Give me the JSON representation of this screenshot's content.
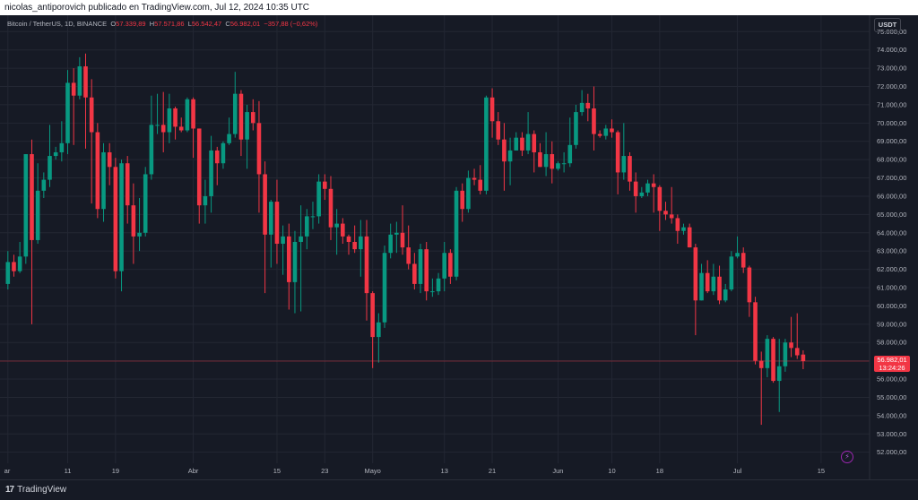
{
  "header": {
    "caption": "nicolas_antiporovich publicado en TradingView.com, Jul 12, 2024 10:35 UTC"
  },
  "legend": {
    "symbol": "Bitcoin / TetherUS, 1D, BINANCE",
    "o_label": "O",
    "o_value": "57.339,89",
    "h_label": "H",
    "h_value": "57.571,86",
    "l_label": "L",
    "l_value": "56.542,47",
    "c_label": "C",
    "c_value": "56.982,01",
    "change": "−357,88 (−0,62%)"
  },
  "currency_button": "USDT",
  "last_price": {
    "value": "56.982,01",
    "countdown": "13:24:26"
  },
  "footer": {
    "brand": "TradingView",
    "logo_text": "17"
  },
  "colors": {
    "up": "#089981",
    "down": "#f23645",
    "background": "#161a25",
    "grid": "#232733",
    "axis_text": "#b2b5be"
  },
  "chart_data": {
    "type": "candlestick",
    "title": "Bitcoin / TetherUS, 1D, BINANCE",
    "ylim": [
      51200,
      75700
    ],
    "y_ticks": [
      52000,
      53000,
      54000,
      55000,
      56000,
      57000,
      58000,
      59000,
      60000,
      61000,
      62000,
      63000,
      64000,
      65000,
      66000,
      67000,
      68000,
      69000,
      70000,
      71000,
      72000,
      73000,
      74000,
      75000
    ],
    "y_tick_labels": [
      "52.000,00",
      "53.000,00",
      "54.000,00",
      "55.000,00",
      "56.000,00",
      "57.000,00",
      "58.000,00",
      "59.000,00",
      "60.000,00",
      "61.000,00",
      "62.000,00",
      "63.000,00",
      "64.000,00",
      "65.000,00",
      "66.000,00",
      "67.000,00",
      "68.000,00",
      "69.000,00",
      "70.000,00",
      "71.000,00",
      "72.000,00",
      "73.000,00",
      "74.000,00",
      "75.000,00"
    ],
    "x_tick_labels": [
      {
        "label": "ar",
        "date": "2024-03-01"
      },
      {
        "label": "11",
        "date": "2024-03-11"
      },
      {
        "label": "19",
        "date": "2024-03-19"
      },
      {
        "label": "Abr",
        "date": "2024-04-01"
      },
      {
        "label": "15",
        "date": "2024-04-15"
      },
      {
        "label": "23",
        "date": "2024-04-23"
      },
      {
        "label": "Mayo",
        "date": "2024-05-01"
      },
      {
        "label": "13",
        "date": "2024-05-13"
      },
      {
        "label": "21",
        "date": "2024-05-21"
      },
      {
        "label": "Jun",
        "date": "2024-06-01"
      },
      {
        "label": "10",
        "date": "2024-06-10"
      },
      {
        "label": "18",
        "date": "2024-06-18"
      },
      {
        "label": "Jul",
        "date": "2024-07-01"
      },
      {
        "label": "15",
        "date": "2024-07-15"
      }
    ],
    "last_price": 56982.01,
    "candles": [
      {
        "date": "2024-03-01",
        "o": 61200,
        "h": 63000,
        "l": 60900,
        "c": 62400
      },
      {
        "date": "2024-03-02",
        "o": 62400,
        "h": 62800,
        "l": 61600,
        "c": 61900
      },
      {
        "date": "2024-03-03",
        "o": 61900,
        "h": 63500,
        "l": 61800,
        "c": 62700
      },
      {
        "date": "2024-03-04",
        "o": 62700,
        "h": 68300,
        "l": 62300,
        "c": 68300
      },
      {
        "date": "2024-03-05",
        "o": 68300,
        "h": 69100,
        "l": 59000,
        "c": 63600
      },
      {
        "date": "2024-03-06",
        "o": 63600,
        "h": 67800,
        "l": 63400,
        "c": 66300
      },
      {
        "date": "2024-03-07",
        "o": 66300,
        "h": 67300,
        "l": 65900,
        "c": 66900
      },
      {
        "date": "2024-03-08",
        "o": 66900,
        "h": 69900,
        "l": 66500,
        "c": 68200
      },
      {
        "date": "2024-03-09",
        "o": 68200,
        "h": 68700,
        "l": 68000,
        "c": 68400
      },
      {
        "date": "2024-03-10",
        "o": 68400,
        "h": 70100,
        "l": 67900,
        "c": 68900
      },
      {
        "date": "2024-03-11",
        "o": 68900,
        "h": 72900,
        "l": 68300,
        "c": 72200
      },
      {
        "date": "2024-03-12",
        "o": 72200,
        "h": 73000,
        "l": 68800,
        "c": 71500
      },
      {
        "date": "2024-03-13",
        "o": 71500,
        "h": 73600,
        "l": 71300,
        "c": 73100
      },
      {
        "date": "2024-03-14",
        "o": 73100,
        "h": 73800,
        "l": 68600,
        "c": 71400
      },
      {
        "date": "2024-03-15",
        "o": 71400,
        "h": 72400,
        "l": 65600,
        "c": 69500
      },
      {
        "date": "2024-03-16",
        "o": 69500,
        "h": 70000,
        "l": 64800,
        "c": 65300
      },
      {
        "date": "2024-03-17",
        "o": 65300,
        "h": 68900,
        "l": 64600,
        "c": 68400
      },
      {
        "date": "2024-03-18",
        "o": 68400,
        "h": 68900,
        "l": 66600,
        "c": 67600
      },
      {
        "date": "2024-03-19",
        "o": 67600,
        "h": 68100,
        "l": 61500,
        "c": 61900
      },
      {
        "date": "2024-03-20",
        "o": 61900,
        "h": 68000,
        "l": 60800,
        "c": 67800
      },
      {
        "date": "2024-03-21",
        "o": 67800,
        "h": 68200,
        "l": 64500,
        "c": 65500
      },
      {
        "date": "2024-03-22",
        "o": 65500,
        "h": 66700,
        "l": 62300,
        "c": 63800
      },
      {
        "date": "2024-03-23",
        "o": 63800,
        "h": 65900,
        "l": 63000,
        "c": 64000
      },
      {
        "date": "2024-03-24",
        "o": 64000,
        "h": 67600,
        "l": 63800,
        "c": 67200
      },
      {
        "date": "2024-03-25",
        "o": 67200,
        "h": 71500,
        "l": 66900,
        "c": 69900
      },
      {
        "date": "2024-03-26",
        "o": 69900,
        "h": 71600,
        "l": 69400,
        "c": 69900
      },
      {
        "date": "2024-03-27",
        "o": 69900,
        "h": 71700,
        "l": 68400,
        "c": 69500
      },
      {
        "date": "2024-03-28",
        "o": 69500,
        "h": 71600,
        "l": 68900,
        "c": 70800
      },
      {
        "date": "2024-03-29",
        "o": 70800,
        "h": 70900,
        "l": 69100,
        "c": 69800
      },
      {
        "date": "2024-03-30",
        "o": 69800,
        "h": 70300,
        "l": 69500,
        "c": 69600
      },
      {
        "date": "2024-03-31",
        "o": 69600,
        "h": 71400,
        "l": 69500,
        "c": 71300
      },
      {
        "date": "2024-04-01",
        "o": 71300,
        "h": 71400,
        "l": 68100,
        "c": 69700
      },
      {
        "date": "2024-04-02",
        "o": 69700,
        "h": 69700,
        "l": 64500,
        "c": 65500
      },
      {
        "date": "2024-04-03",
        "o": 65500,
        "h": 66900,
        "l": 64500,
        "c": 66000
      },
      {
        "date": "2024-04-04",
        "o": 66000,
        "h": 69300,
        "l": 65100,
        "c": 68500
      },
      {
        "date": "2024-04-05",
        "o": 68500,
        "h": 68700,
        "l": 66600,
        "c": 67800
      },
      {
        "date": "2024-04-06",
        "o": 67800,
        "h": 69000,
        "l": 67500,
        "c": 68900
      },
      {
        "date": "2024-04-07",
        "o": 68900,
        "h": 70300,
        "l": 68800,
        "c": 69400
      },
      {
        "date": "2024-04-08",
        "o": 69400,
        "h": 72800,
        "l": 69200,
        "c": 71600
      },
      {
        "date": "2024-04-09",
        "o": 71600,
        "h": 71800,
        "l": 68200,
        "c": 69100
      },
      {
        "date": "2024-04-10",
        "o": 69100,
        "h": 71000,
        "l": 67500,
        "c": 70600
      },
      {
        "date": "2024-04-11",
        "o": 70600,
        "h": 71300,
        "l": 69600,
        "c": 70000
      },
      {
        "date": "2024-04-12",
        "o": 70000,
        "h": 71200,
        "l": 65100,
        "c": 67200
      },
      {
        "date": "2024-04-13",
        "o": 67200,
        "h": 67900,
        "l": 60700,
        "c": 63900
      },
      {
        "date": "2024-04-14",
        "o": 63900,
        "h": 65800,
        "l": 62100,
        "c": 65700
      },
      {
        "date": "2024-04-15",
        "o": 65700,
        "h": 66900,
        "l": 62300,
        "c": 63400
      },
      {
        "date": "2024-04-16",
        "o": 63400,
        "h": 64400,
        "l": 61700,
        "c": 63800
      },
      {
        "date": "2024-04-17",
        "o": 63800,
        "h": 64500,
        "l": 59800,
        "c": 61300
      },
      {
        "date": "2024-04-18",
        "o": 61300,
        "h": 64100,
        "l": 59600,
        "c": 63500
      },
      {
        "date": "2024-04-19",
        "o": 63500,
        "h": 65500,
        "l": 59700,
        "c": 63800
      },
      {
        "date": "2024-04-20",
        "o": 63800,
        "h": 65300,
        "l": 63100,
        "c": 64900
      },
      {
        "date": "2024-04-21",
        "o": 64900,
        "h": 65700,
        "l": 64200,
        "c": 64900
      },
      {
        "date": "2024-04-22",
        "o": 64900,
        "h": 67200,
        "l": 64500,
        "c": 66800
      },
      {
        "date": "2024-04-23",
        "o": 66800,
        "h": 67200,
        "l": 65800,
        "c": 66400
      },
      {
        "date": "2024-04-24",
        "o": 66400,
        "h": 67100,
        "l": 63600,
        "c": 64300
      },
      {
        "date": "2024-04-25",
        "o": 64300,
        "h": 65300,
        "l": 62800,
        "c": 64500
      },
      {
        "date": "2024-04-26",
        "o": 64500,
        "h": 64800,
        "l": 63400,
        "c": 63800
      },
      {
        "date": "2024-04-27",
        "o": 63800,
        "h": 63900,
        "l": 62800,
        "c": 63500
      },
      {
        "date": "2024-04-28",
        "o": 63500,
        "h": 64400,
        "l": 62900,
        "c": 63100
      },
      {
        "date": "2024-04-29",
        "o": 63100,
        "h": 64700,
        "l": 61600,
        "c": 63800
      },
      {
        "date": "2024-04-30",
        "o": 63800,
        "h": 64700,
        "l": 59200,
        "c": 60700
      },
      {
        "date": "2024-05-01",
        "o": 60700,
        "h": 60800,
        "l": 56600,
        "c": 58300
      },
      {
        "date": "2024-05-02",
        "o": 58300,
        "h": 59600,
        "l": 56900,
        "c": 59100
      },
      {
        "date": "2024-05-03",
        "o": 59100,
        "h": 63300,
        "l": 58800,
        "c": 62900
      },
      {
        "date": "2024-05-04",
        "o": 62900,
        "h": 64500,
        "l": 62600,
        "c": 63900
      },
      {
        "date": "2024-05-05",
        "o": 63900,
        "h": 64600,
        "l": 62900,
        "c": 64000
      },
      {
        "date": "2024-05-06",
        "o": 64000,
        "h": 65500,
        "l": 62800,
        "c": 63200
      },
      {
        "date": "2024-05-07",
        "o": 63200,
        "h": 64400,
        "l": 62000,
        "c": 62300
      },
      {
        "date": "2024-05-08",
        "o": 62300,
        "h": 62900,
        "l": 60900,
        "c": 61200
      },
      {
        "date": "2024-05-09",
        "o": 61200,
        "h": 63400,
        "l": 60700,
        "c": 63100
      },
      {
        "date": "2024-05-10",
        "o": 63100,
        "h": 63500,
        "l": 60300,
        "c": 60800
      },
      {
        "date": "2024-05-11",
        "o": 60800,
        "h": 61500,
        "l": 60500,
        "c": 60800
      },
      {
        "date": "2024-05-12",
        "o": 60800,
        "h": 61800,
        "l": 60600,
        "c": 61500
      },
      {
        "date": "2024-05-13",
        "o": 61500,
        "h": 63500,
        "l": 60800,
        "c": 62900
      },
      {
        "date": "2024-05-14",
        "o": 62900,
        "h": 63100,
        "l": 61200,
        "c": 61600
      },
      {
        "date": "2024-05-15",
        "o": 61600,
        "h": 66500,
        "l": 61400,
        "c": 66300
      },
      {
        "date": "2024-05-16",
        "o": 66300,
        "h": 66700,
        "l": 64600,
        "c": 65300
      },
      {
        "date": "2024-05-17",
        "o": 65300,
        "h": 67400,
        "l": 65100,
        "c": 67000
      },
      {
        "date": "2024-05-18",
        "o": 67000,
        "h": 67500,
        "l": 66600,
        "c": 66900
      },
      {
        "date": "2024-05-19",
        "o": 66900,
        "h": 67700,
        "l": 66100,
        "c": 66300
      },
      {
        "date": "2024-05-20",
        "o": 66300,
        "h": 71500,
        "l": 66100,
        "c": 71400
      },
      {
        "date": "2024-05-21",
        "o": 71400,
        "h": 71900,
        "l": 69200,
        "c": 70100
      },
      {
        "date": "2024-05-22",
        "o": 70100,
        "h": 70600,
        "l": 68800,
        "c": 69100
      },
      {
        "date": "2024-05-23",
        "o": 69100,
        "h": 70000,
        "l": 66300,
        "c": 67900
      },
      {
        "date": "2024-05-24",
        "o": 67900,
        "h": 69200,
        "l": 66600,
        "c": 68500
      },
      {
        "date": "2024-05-25",
        "o": 68500,
        "h": 69500,
        "l": 68500,
        "c": 69200
      },
      {
        "date": "2024-05-26",
        "o": 69200,
        "h": 69500,
        "l": 68200,
        "c": 68500
      },
      {
        "date": "2024-05-27",
        "o": 68500,
        "h": 70600,
        "l": 68300,
        "c": 69400
      },
      {
        "date": "2024-05-28",
        "o": 69400,
        "h": 69600,
        "l": 67300,
        "c": 68400
      },
      {
        "date": "2024-05-29",
        "o": 68400,
        "h": 68900,
        "l": 67600,
        "c": 67600
      },
      {
        "date": "2024-05-30",
        "o": 67600,
        "h": 69500,
        "l": 67100,
        "c": 68300
      },
      {
        "date": "2024-05-31",
        "o": 68300,
        "h": 69000,
        "l": 66700,
        "c": 67500
      },
      {
        "date": "2024-06-01",
        "o": 67500,
        "h": 67900,
        "l": 67400,
        "c": 67800
      },
      {
        "date": "2024-06-02",
        "o": 67800,
        "h": 68400,
        "l": 67300,
        "c": 67800
      },
      {
        "date": "2024-06-03",
        "o": 67800,
        "h": 70300,
        "l": 67600,
        "c": 68800
      },
      {
        "date": "2024-06-04",
        "o": 68800,
        "h": 71000,
        "l": 68600,
        "c": 70600
      },
      {
        "date": "2024-06-05",
        "o": 70600,
        "h": 71800,
        "l": 70400,
        "c": 71100
      },
      {
        "date": "2024-06-06",
        "o": 71100,
        "h": 71600,
        "l": 70100,
        "c": 70800
      },
      {
        "date": "2024-06-07",
        "o": 70800,
        "h": 72000,
        "l": 68500,
        "c": 69400
      },
      {
        "date": "2024-06-08",
        "o": 69400,
        "h": 69600,
        "l": 69200,
        "c": 69300
      },
      {
        "date": "2024-06-09",
        "o": 69300,
        "h": 69900,
        "l": 69100,
        "c": 69700
      },
      {
        "date": "2024-06-10",
        "o": 69700,
        "h": 70200,
        "l": 69200,
        "c": 69500
      },
      {
        "date": "2024-06-11",
        "o": 69500,
        "h": 69600,
        "l": 66100,
        "c": 67300
      },
      {
        "date": "2024-06-12",
        "o": 67300,
        "h": 70000,
        "l": 66900,
        "c": 68200
      },
      {
        "date": "2024-06-13",
        "o": 68200,
        "h": 68400,
        "l": 66300,
        "c": 66800
      },
      {
        "date": "2024-06-14",
        "o": 66800,
        "h": 67300,
        "l": 65100,
        "c": 66000
      },
      {
        "date": "2024-06-15",
        "o": 66000,
        "h": 66500,
        "l": 65900,
        "c": 66200
      },
      {
        "date": "2024-06-16",
        "o": 66200,
        "h": 66900,
        "l": 66000,
        "c": 66700
      },
      {
        "date": "2024-06-17",
        "o": 66700,
        "h": 67200,
        "l": 65100,
        "c": 66500
      },
      {
        "date": "2024-06-18",
        "o": 66500,
        "h": 66600,
        "l": 64100,
        "c": 65200
      },
      {
        "date": "2024-06-19",
        "o": 65200,
        "h": 65700,
        "l": 64700,
        "c": 65000
      },
      {
        "date": "2024-06-20",
        "o": 65000,
        "h": 66500,
        "l": 64500,
        "c": 64800
      },
      {
        "date": "2024-06-21",
        "o": 64800,
        "h": 65000,
        "l": 63400,
        "c": 64100
      },
      {
        "date": "2024-06-22",
        "o": 64100,
        "h": 64500,
        "l": 63900,
        "c": 64300
      },
      {
        "date": "2024-06-23",
        "o": 64300,
        "h": 64500,
        "l": 63200,
        "c": 63200
      },
      {
        "date": "2024-06-24",
        "o": 63200,
        "h": 63400,
        "l": 58400,
        "c": 60300
      },
      {
        "date": "2024-06-25",
        "o": 60300,
        "h": 62300,
        "l": 60300,
        "c": 61800
      },
      {
        "date": "2024-06-26",
        "o": 61800,
        "h": 62500,
        "l": 60700,
        "c": 60800
      },
      {
        "date": "2024-06-27",
        "o": 60800,
        "h": 62300,
        "l": 60600,
        "c": 61600
      },
      {
        "date": "2024-06-28",
        "o": 61600,
        "h": 62200,
        "l": 60100,
        "c": 60300
      },
      {
        "date": "2024-06-29",
        "o": 60300,
        "h": 61200,
        "l": 60200,
        "c": 60900
      },
      {
        "date": "2024-06-30",
        "o": 60900,
        "h": 63000,
        "l": 60800,
        "c": 62700
      },
      {
        "date": "2024-07-01",
        "o": 62700,
        "h": 63800,
        "l": 62600,
        "c": 62900
      },
      {
        "date": "2024-07-02",
        "o": 62900,
        "h": 63200,
        "l": 61800,
        "c": 62100
      },
      {
        "date": "2024-07-03",
        "o": 62100,
        "h": 62200,
        "l": 59400,
        "c": 60200
      },
      {
        "date": "2024-07-04",
        "o": 60200,
        "h": 60500,
        "l": 56800,
        "c": 57000
      },
      {
        "date": "2024-07-05",
        "o": 57000,
        "h": 57500,
        "l": 53500,
        "c": 56600
      },
      {
        "date": "2024-07-06",
        "o": 56600,
        "h": 58400,
        "l": 56100,
        "c": 58200
      },
      {
        "date": "2024-07-07",
        "o": 58200,
        "h": 58300,
        "l": 55800,
        "c": 55900
      },
      {
        "date": "2024-07-08",
        "o": 55900,
        "h": 58200,
        "l": 54200,
        "c": 56700
      },
      {
        "date": "2024-07-09",
        "o": 56700,
        "h": 58200,
        "l": 56400,
        "c": 58000
      },
      {
        "date": "2024-07-10",
        "o": 58000,
        "h": 59400,
        "l": 57200,
        "c": 57700
      },
      {
        "date": "2024-07-11",
        "o": 57700,
        "h": 59600,
        "l": 57100,
        "c": 57300
      },
      {
        "date": "2024-07-12",
        "o": 57340,
        "h": 57572,
        "l": 56542,
        "c": 56982
      }
    ]
  }
}
